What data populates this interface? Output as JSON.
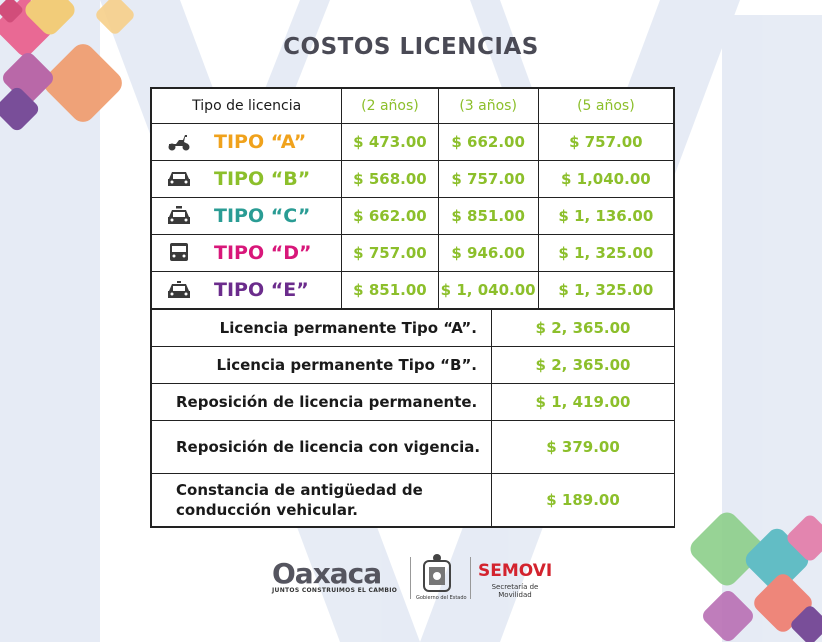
{
  "title": "COSTOS LICENCIAS",
  "header": {
    "label": "Tipo de licencia",
    "col1": "(2 años)",
    "col2": "(3 años)",
    "col3": "(5 años)"
  },
  "rows": [
    {
      "name": "TIPO “A”",
      "color": "#f0a21c",
      "icon": "scooter-icon",
      "p1": "$ 473.00",
      "p2": "$ 662.00",
      "p3": "$ 757.00"
    },
    {
      "name": "TIPO “B”",
      "color": "#8cbf2b",
      "icon": "car-icon",
      "p1": "$ 568.00",
      "p2": "$ 757.00",
      "p3": "$ 1,040.00"
    },
    {
      "name": "TIPO “C”",
      "color": "#2a9c94",
      "icon": "taxi-icon",
      "p1": "$ 662.00",
      "p2": "$ 851.00",
      "p3": "$ 1, 136.00"
    },
    {
      "name": "TIPO “D”",
      "color": "#d8177a",
      "icon": "bus-icon",
      "p1": "$ 757.00",
      "p2": "$ 946.00",
      "p3": "$ 1, 325.00"
    },
    {
      "name": "TIPO “E”",
      "color": "#6b2c8c",
      "icon": "ambulance-icon",
      "p1": "$ 851.00",
      "p2": "$ 1, 040.00",
      "p3": "$ 1, 325.00"
    }
  ],
  "extras": [
    {
      "name": "Licencia permanente Tipo “A”.",
      "price": "$ 2, 365.00"
    },
    {
      "name": "Licencia permanente Tipo “B”.",
      "price": "$ 2, 365.00"
    },
    {
      "name": "Reposición de licencia permanente.",
      "price": "$ 1, 419.00"
    },
    {
      "name": "Reposición de licencia con vigencia.",
      "price": "$ 379.00"
    },
    {
      "name": "Constancia de antigüedad de conducción vehicular.",
      "price": "$ 189.00"
    }
  ],
  "footer": {
    "oaxaca": "Oaxaca",
    "slogan": "JUNTOS CONSTRUIMOS EL CAMBIO",
    "gobierno": "Gobierno del Estado",
    "semovi": "SEMOVI",
    "semovi_sub": "Secretaría de Movilidad"
  },
  "colors": {
    "price": "#8cbf2b",
    "border": "#222222",
    "title": "#4a4a55",
    "brand_red": "#d3232e"
  }
}
